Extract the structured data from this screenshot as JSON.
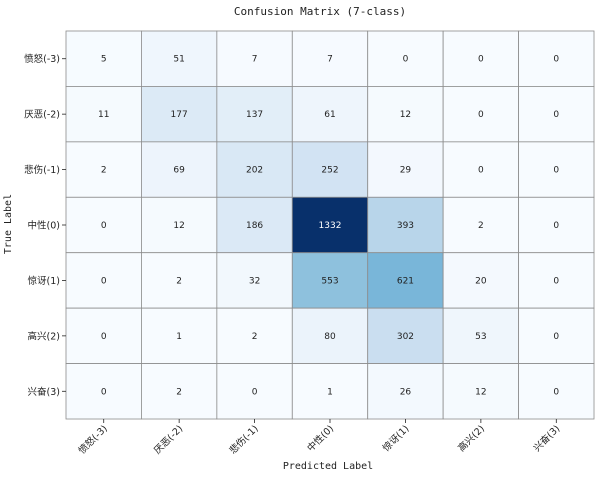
{
  "chart_data": {
    "type": "heatmap",
    "title": "Confusion Matrix (7-class)",
    "xlabel": "Predicted Label",
    "ylabel": "True Label",
    "row_labels": [
      "愤怒(-3)",
      "厌恶(-2)",
      "悲伤(-1)",
      "中性(0)",
      "惊讶(1)",
      "高兴(2)",
      "兴奋(3)"
    ],
    "col_labels": [
      "愤怒(-3)",
      "厌恶(-2)",
      "悲伤(-1)",
      "中性(0)",
      "惊讶(1)",
      "高兴(2)",
      "兴奋(3)"
    ],
    "values": [
      [
        5,
        51,
        7,
        7,
        0,
        0,
        0
      ],
      [
        11,
        177,
        137,
        61,
        12,
        0,
        0
      ],
      [
        2,
        69,
        202,
        252,
        29,
        0,
        0
      ],
      [
        0,
        12,
        186,
        1332,
        393,
        2,
        0
      ],
      [
        0,
        2,
        32,
        553,
        621,
        20,
        0
      ],
      [
        0,
        1,
        2,
        80,
        302,
        53,
        0
      ],
      [
        0,
        2,
        0,
        1,
        26,
        12,
        0
      ]
    ],
    "colormap": "Blues",
    "vmin": 0,
    "vmax": 1332
  }
}
